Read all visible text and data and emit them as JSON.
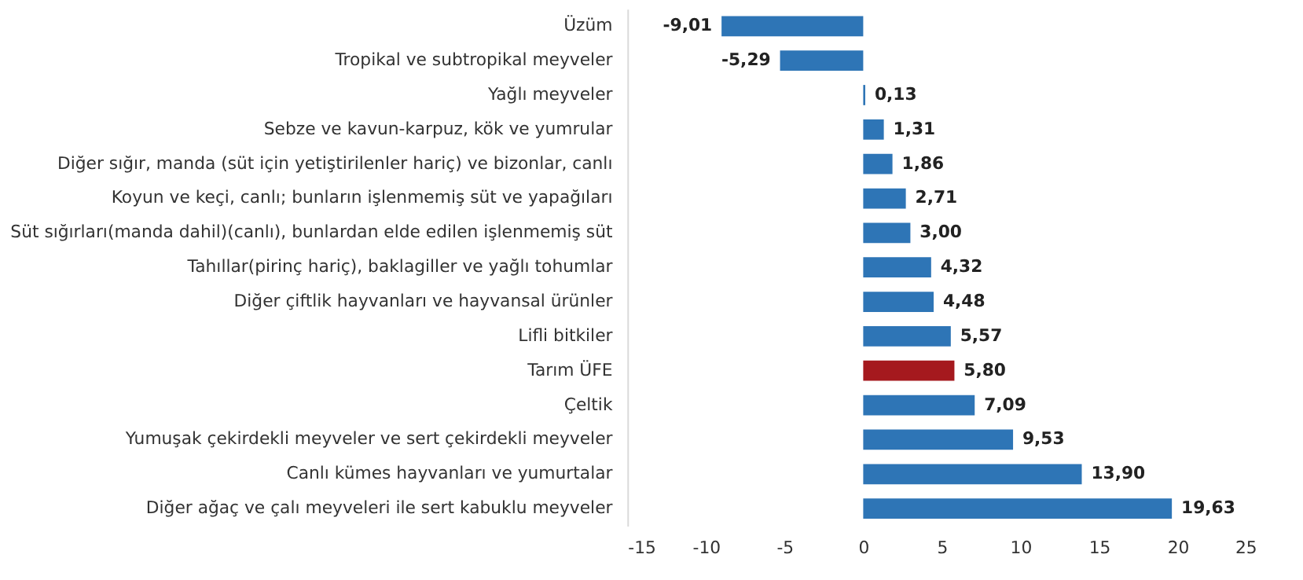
{
  "chart_data": {
    "type": "bar",
    "orientation": "horizontal",
    "categories": [
      "Üzüm",
      "Tropikal ve subtropikal meyveler",
      "Yağlı meyveler",
      "Sebze ve kavun-karpuz, kök ve yumrular",
      "Diğer sığır, manda (süt için yetiştirilenler hariç) ve bizonlar, canlı",
      "Koyun ve keçi, canlı; bunların işlenmemiş süt ve yapağıları",
      "Süt sığırları(manda dahil)(canlı), bunlardan elde edilen işlenmemiş süt",
      "Tahıllar(pirinç hariç), baklagiller ve yağlı tohumlar",
      "Diğer çiftlik hayvanları ve hayvansal ürünler",
      "Lifli bitkiler",
      "Tarım ÜFE",
      "Çeltik",
      "Yumuşak çekirdekli meyveler ve sert çekirdekli meyveler",
      "Canlı kümes hayvanları ve yumurtalar",
      "Diğer ağaç ve çalı meyveleri ile sert kabuklu meyveler"
    ],
    "values": [
      -9.01,
      -5.29,
      0.13,
      1.31,
      1.86,
      2.71,
      3.0,
      4.32,
      4.48,
      5.57,
      5.8,
      7.09,
      9.53,
      13.9,
      19.63
    ],
    "value_labels": [
      "-9,01",
      "-5,29",
      "0,13",
      "1,31",
      "1,86",
      "2,71",
      "3,00",
      "4,32",
      "4,48",
      "5,57",
      "5,80",
      "7,09",
      "9,53",
      "13,90",
      "19,63"
    ],
    "colors": [
      "#2e75b6",
      "#2e75b6",
      "#2e75b6",
      "#2e75b6",
      "#2e75b6",
      "#2e75b6",
      "#2e75b6",
      "#2e75b6",
      "#2e75b6",
      "#2e75b6",
      "#a5191e",
      "#2e75b6",
      "#2e75b6",
      "#2e75b6",
      "#2e75b6"
    ],
    "xlim": [
      -15,
      25
    ],
    "xticks": [
      -15,
      -10,
      -5,
      0,
      5,
      10,
      15,
      20,
      25
    ],
    "grid": false
  }
}
